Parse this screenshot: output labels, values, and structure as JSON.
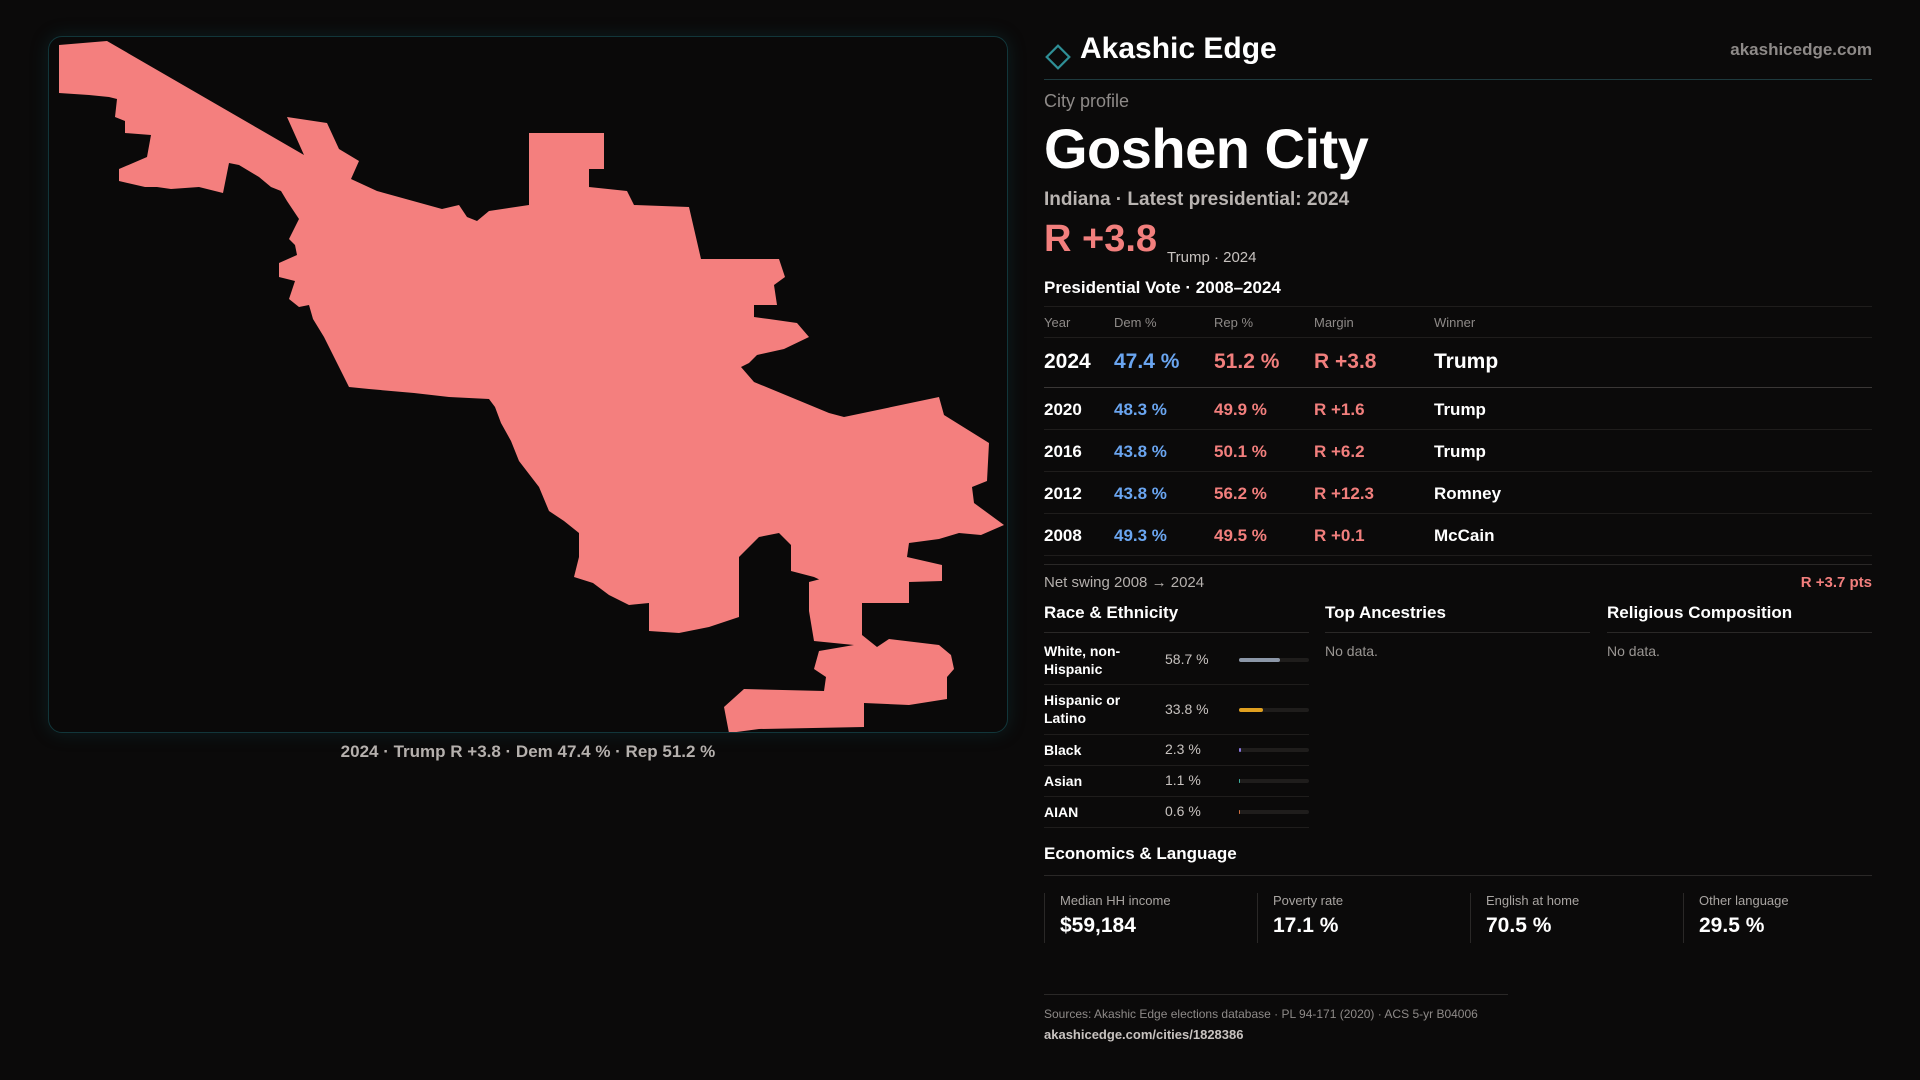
{
  "colors": {
    "rep": "#f47f7e",
    "dem": "#6aa5f0",
    "accent": "#2f8f96"
  },
  "map": {
    "fill_color": "#f47f7e",
    "caption": "2024 · Trump R +3.8 · Dem 47.4 % · Rep 51.2 %"
  },
  "brand": {
    "name": "Akashic Edge",
    "url": "akashicedge.com",
    "logo_icon": "diamond-outline-icon"
  },
  "profile": {
    "eyebrow": "City profile",
    "city": "Goshen City",
    "subtitle": "Indiana · Latest presidential: 2024",
    "headline_margin": "R +3.8",
    "headline_detail": "Trump · 2024"
  },
  "vote": {
    "title": "Presidential Vote · 2008–2024",
    "columns": [
      "Year",
      "Dem %",
      "Rep %",
      "Margin",
      "Winner"
    ],
    "rows": [
      {
        "year": "2024",
        "dem": "47.4 %",
        "rep": "51.2 %",
        "margin": "R +3.8",
        "winner": "Trump"
      },
      {
        "year": "2020",
        "dem": "48.3 %",
        "rep": "49.9 %",
        "margin": "R +1.6",
        "winner": "Trump"
      },
      {
        "year": "2016",
        "dem": "43.8 %",
        "rep": "50.1 %",
        "margin": "R +6.2",
        "winner": "Trump"
      },
      {
        "year": "2012",
        "dem": "43.8 %",
        "rep": "56.2 %",
        "margin": "R +12.3",
        "winner": "Romney"
      },
      {
        "year": "2008",
        "dem": "49.3 %",
        "rep": "49.5 %",
        "margin": "R +0.1",
        "winner": "McCain"
      }
    ],
    "swing_label": "Net swing 2008 → 2024",
    "swing_value": "R +3.7 pts"
  },
  "race": {
    "title": "Race & Ethnicity",
    "rows": [
      {
        "label": "White, non-Hispanic",
        "pct": "58.7 %",
        "value": 58.7,
        "color": "#8c97a8"
      },
      {
        "label": "Hispanic or Latino",
        "pct": "33.8 %",
        "value": 33.8,
        "color": "#e0a020"
      },
      {
        "label": "Black",
        "pct": "2.3 %",
        "value": 2.3,
        "color": "#8a78e0"
      },
      {
        "label": "Asian",
        "pct": "1.1 %",
        "value": 1.1,
        "color": "#3fb0a0"
      },
      {
        "label": "AIAN",
        "pct": "0.6 %",
        "value": 0.6,
        "color": "#d07040"
      }
    ]
  },
  "ancestries": {
    "title": "Top Ancestries",
    "empty": "No data."
  },
  "religion": {
    "title": "Religious Composition",
    "empty": "No data."
  },
  "economics": {
    "title": "Economics & Language",
    "cards": [
      {
        "label": "Median HH income",
        "value": "$59,184"
      },
      {
        "label": "Poverty rate",
        "value": "17.1 %"
      },
      {
        "label": "English at home",
        "value": "70.5 %"
      },
      {
        "label": "Other language",
        "value": "29.5 %"
      }
    ]
  },
  "footer": {
    "sources": "Sources: Akashic Edge elections database · PL 94-171 (2020) · ACS 5-yr B04006",
    "link": "akashicedge.com/cities/1828386"
  }
}
